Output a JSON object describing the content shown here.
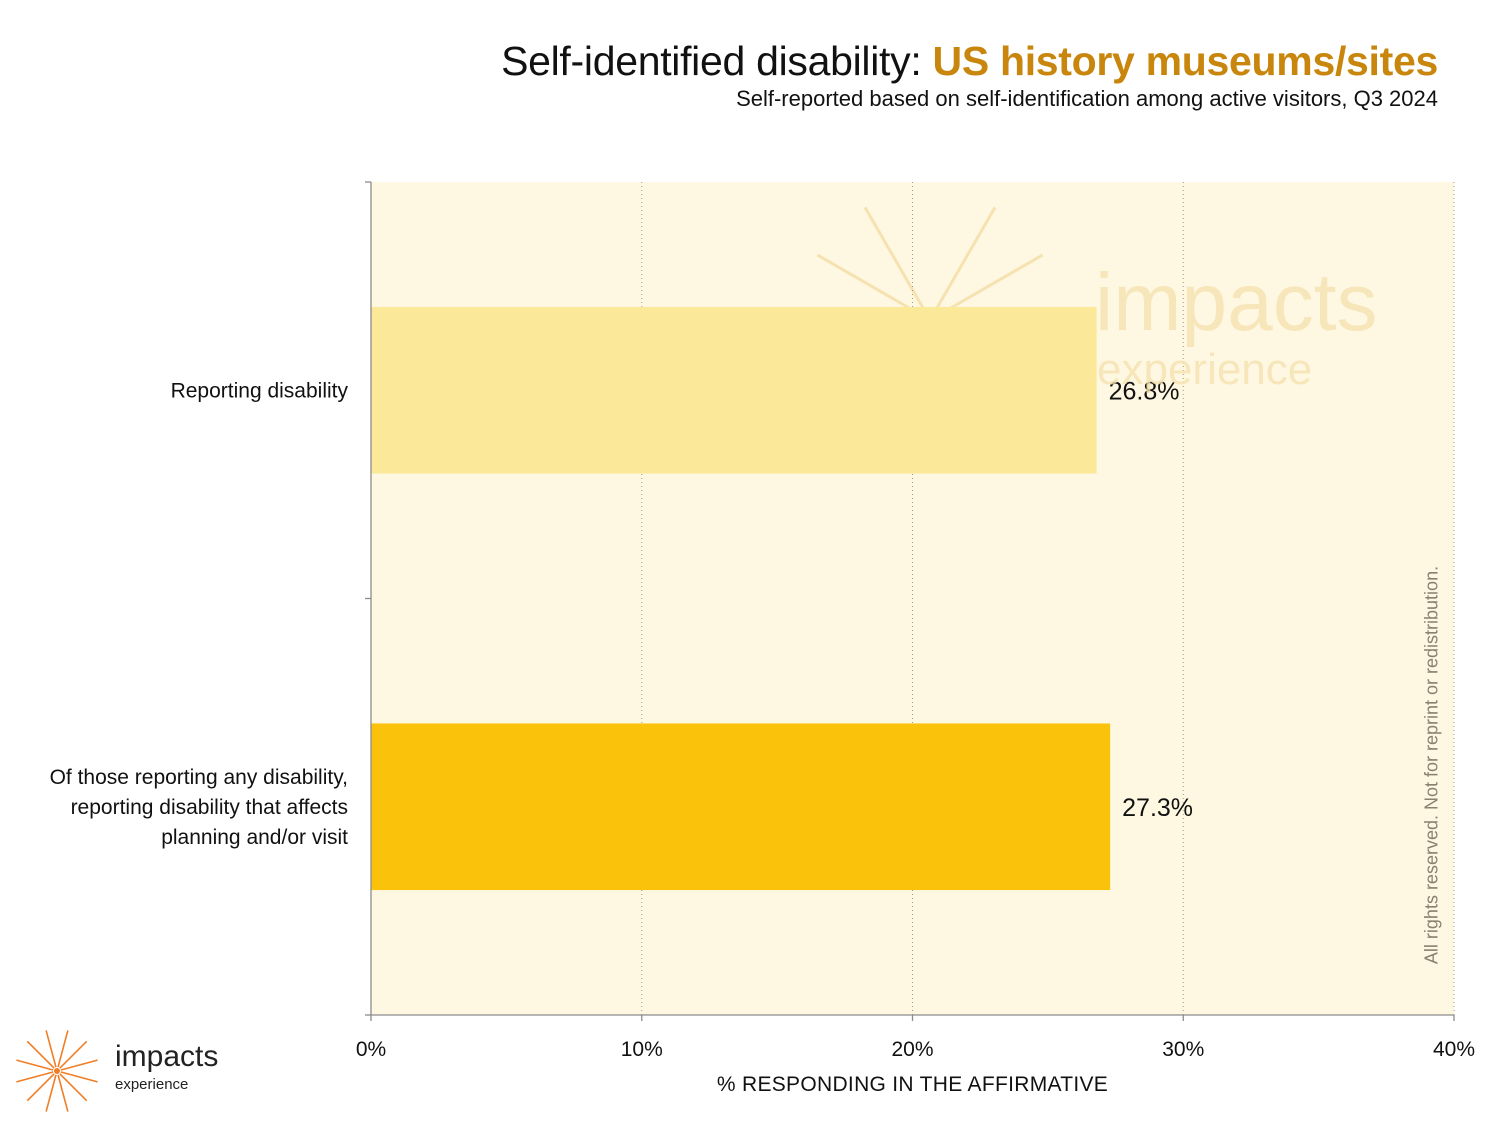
{
  "header": {
    "title_prefix": "Self-identified disability: ",
    "title_highlight": "US history museums/sites",
    "subtitle": "Self-reported based on self-identification among active visitors, Q3 2024"
  },
  "chart_data": {
    "type": "bar",
    "orientation": "horizontal",
    "categories": [
      "Reporting disability",
      "Of those reporting any disability, reporting disability that affects planning and/or visit"
    ],
    "category_lines": [
      [
        "Reporting disability"
      ],
      [
        "Of those reporting any disability,",
        "reporting disability that affects",
        "planning and/or visit"
      ]
    ],
    "values": [
      26.8,
      27.3
    ],
    "value_labels": [
      "26.8%",
      "27.3%"
    ],
    "bar_colors": [
      "#fce899",
      "#fbc20b"
    ],
    "xlabel": "% RESPONDING IN THE AFFIRMATIVE",
    "xlim": [
      0,
      40
    ],
    "xticks": [
      0,
      10,
      20,
      30,
      40
    ],
    "xtick_labels": [
      "0%",
      "10%",
      "20%",
      "30%",
      "40%"
    ],
    "grid": "vertical dotted",
    "plot_background": "#fef8e3"
  },
  "watermark": {
    "word": "impacts",
    "sub": "experience"
  },
  "rights_notice": "All rights reserved. Not for reprint or redistribution.",
  "logo": {
    "word": "impacts",
    "sub": "experience",
    "icon": "sunburst-icon",
    "color": "#f07e26"
  }
}
